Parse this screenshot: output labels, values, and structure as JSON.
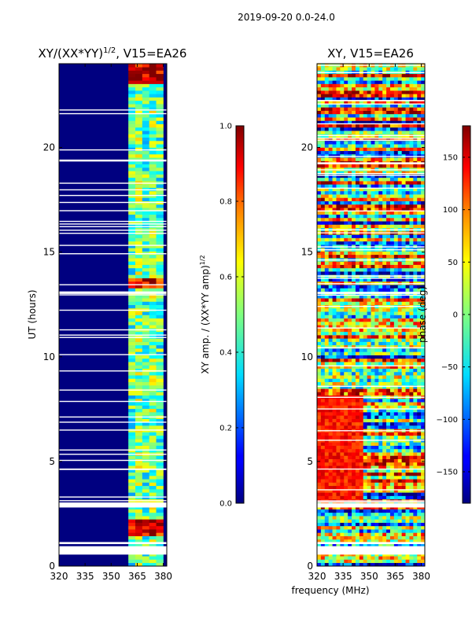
{
  "figure_title": "2019-09-20 0.0-24.0",
  "xlabel_shared": "frequency (MHz)",
  "chart_data": [
    {
      "type": "heatmap",
      "title_main": "XY/(XX*YY)",
      "title_exp": "1/2",
      "title_tail": ", V15=EA26",
      "ylabel": "UT (hours)",
      "xlim": [
        320,
        382
      ],
      "ylim": [
        0,
        24
      ],
      "xticks": [
        320,
        335,
        350,
        365,
        380
      ],
      "yticks": [
        0,
        5,
        10,
        15,
        20
      ],
      "colorbar": {
        "label_main": "XY amp. / (XX*YY amp)",
        "label_exp": "1/2",
        "range": [
          0.0,
          1.0
        ],
        "ticks": [
          "0.0",
          "0.2",
          "0.4",
          "0.6",
          "0.8",
          "1.0"
        ],
        "tick_values": [
          0.0,
          0.2,
          0.4,
          0.6,
          0.8,
          1.0
        ]
      },
      "colormap": "jet",
      "signal_channels_mhz": [
        362,
        366,
        370,
        374,
        378
      ],
      "background_value": 0.0,
      "high_value_hours": [
        [
          1.3,
          2.2
        ],
        [
          13.2,
          13.6
        ],
        [
          23.0,
          24.0
        ]
      ]
    },
    {
      "type": "heatmap",
      "title_main": "XY",
      "title_exp": "",
      "title_tail": ", V15=EA26",
      "xlim": [
        320,
        382
      ],
      "ylim": [
        0,
        24
      ],
      "xticks": [
        320,
        335,
        350,
        365,
        380
      ],
      "yticks": [
        0,
        5,
        10,
        15,
        20
      ],
      "colorbar": {
        "label_main": "phase (deg)",
        "label_exp": "",
        "range": [
          -180,
          180
        ],
        "ticks": [
          "−150",
          "−100",
          "−50",
          "0",
          "50",
          "100",
          "150"
        ],
        "tick_values": [
          -150,
          -100,
          -50,
          0,
          50,
          100,
          150
        ]
      },
      "colormap": "jet",
      "warm_region": {
        "freq_mhz": [
          320,
          345
        ],
        "hours": [
          3.0,
          8.0
        ]
      }
    }
  ],
  "flag_gap_hours": [
    [
      0.55,
      0.95
    ],
    [
      1.05,
      1.15
    ],
    [
      2.8,
      3.0
    ],
    [
      13.0,
      13.1
    ]
  ]
}
